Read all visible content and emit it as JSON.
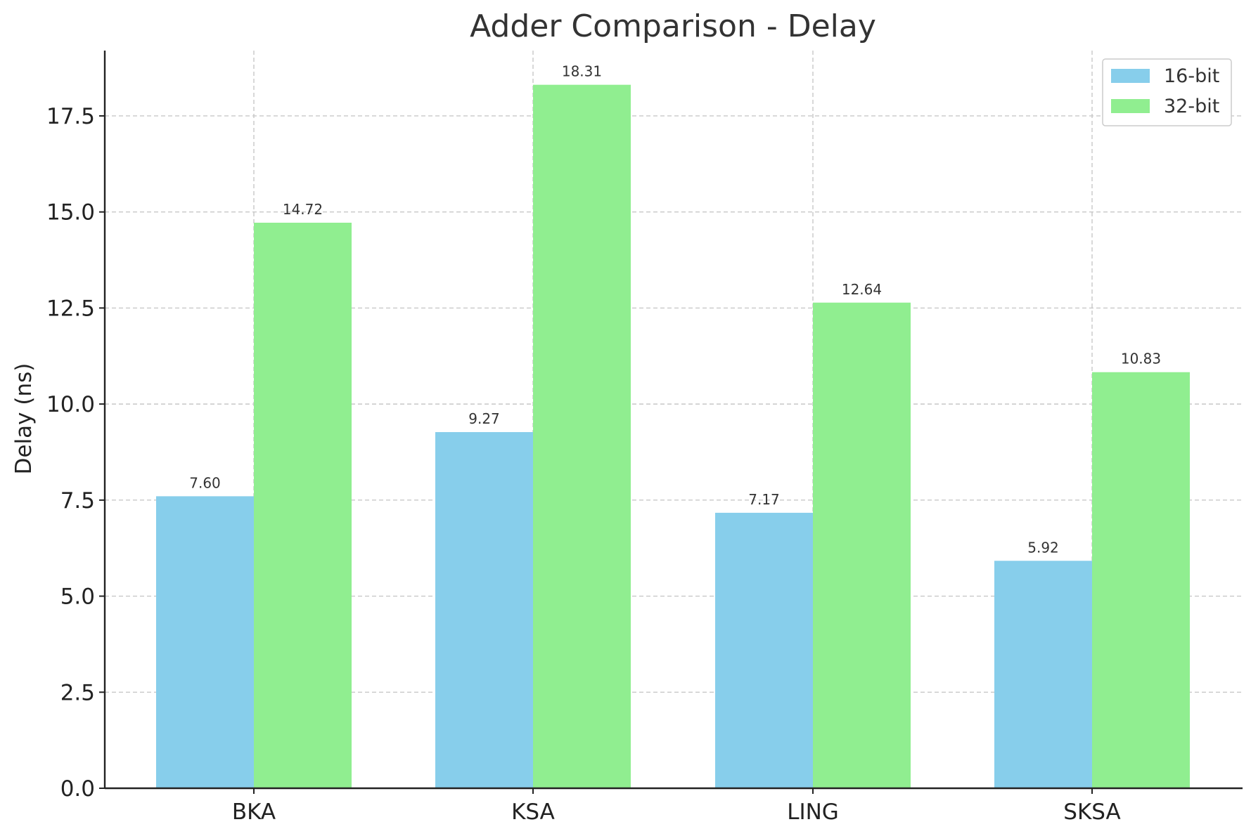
{
  "chart_data": {
    "type": "bar",
    "title": "Adder Comparison - Delay",
    "xlabel": "",
    "ylabel": "Delay (ns)",
    "categories": [
      "BKA",
      "KSA",
      "LING",
      "SKSA"
    ],
    "series": [
      {
        "name": "16-bit",
        "color": "#87ceeb",
        "values": [
          7.6,
          9.27,
          7.17,
          5.92
        ]
      },
      {
        "name": "32-bit",
        "color": "#90ee90",
        "values": [
          14.72,
          18.31,
          12.64,
          10.83
        ]
      }
    ],
    "ylim": [
      0,
      19.2
    ],
    "yticks": [
      "0.0",
      "2.5",
      "5.0",
      "7.5",
      "10.0",
      "12.5",
      "15.0",
      "17.5"
    ],
    "ytick_values": [
      0,
      2.5,
      5,
      7.5,
      10,
      12.5,
      15,
      17.5
    ],
    "data_labels": [
      [
        "7.60",
        "9.27",
        "7.17",
        "5.92"
      ],
      [
        "14.72",
        "18.31",
        "12.64",
        "10.83"
      ]
    ],
    "grid": true,
    "legend_position": "top-right"
  }
}
